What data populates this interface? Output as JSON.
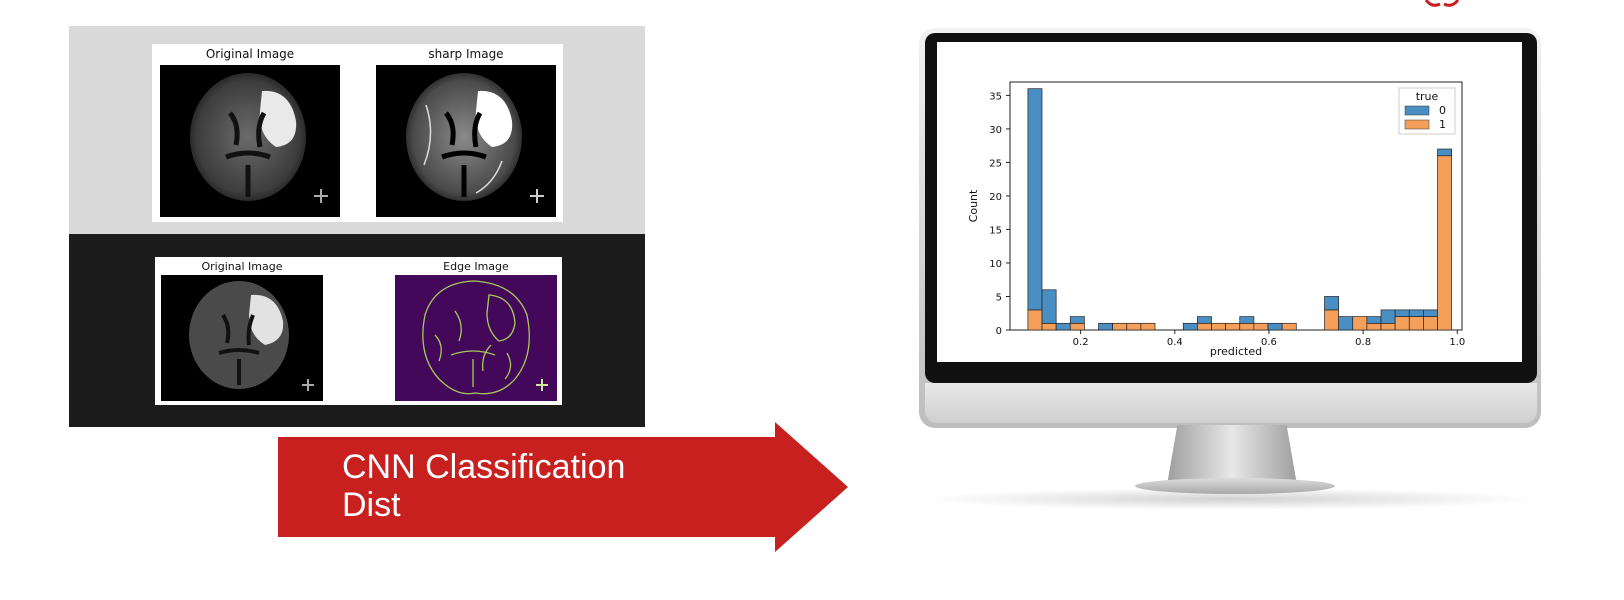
{
  "top_figure": {
    "left_title": "Original Image",
    "right_title": "sharp Image"
  },
  "bottom_figure": {
    "left_title": "Original Image",
    "right_title": "Edge Image"
  },
  "arrow": {
    "line1": "CNN Classification",
    "line2": "Dist",
    "color": "#c8201f"
  },
  "chart_data": {
    "type": "bar",
    "subtype": "stacked histogram",
    "xlabel": "predicted",
    "ylabel": "Count",
    "xlim": [
      0.05,
      1.01
    ],
    "ylim": [
      0,
      37
    ],
    "xticks": [
      0.2,
      0.4,
      0.6,
      0.8,
      1.0
    ],
    "xtick_labels": [
      "0.2",
      "0.4",
      "0.6",
      "0.8",
      "1.0"
    ],
    "yticks": [
      0,
      5,
      10,
      15,
      20,
      25,
      30,
      35
    ],
    "ytick_labels": [
      "0",
      "5",
      "10",
      "15",
      "20",
      "25",
      "30",
      "35"
    ],
    "legend": {
      "title": "true",
      "position": "top-right",
      "entries": [
        "0",
        "1"
      ]
    },
    "bin_edges": [
      0.088,
      0.118,
      0.148,
      0.178,
      0.208,
      0.238,
      0.268,
      0.298,
      0.328,
      0.358,
      0.388,
      0.418,
      0.448,
      0.478,
      0.508,
      0.538,
      0.568,
      0.598,
      0.628,
      0.658,
      0.688,
      0.718,
      0.748,
      0.778,
      0.808,
      0.838,
      0.868,
      0.898,
      0.928,
      0.958,
      0.988
    ],
    "series": [
      {
        "name": "0",
        "color": "#4a8fc4",
        "values": [
          33,
          5,
          1,
          1,
          0,
          1,
          0,
          0,
          0,
          0,
          0,
          1,
          1,
          0,
          0,
          1,
          0,
          1,
          0,
          0,
          0,
          2,
          2,
          0,
          1,
          2,
          1,
          1,
          1,
          1
        ]
      },
      {
        "name": "1",
        "color": "#f5a05a",
        "values": [
          3,
          1,
          0,
          1,
          0,
          0,
          1,
          1,
          1,
          0,
          0,
          0,
          1,
          1,
          1,
          1,
          1,
          0,
          1,
          0,
          0,
          3,
          0,
          2,
          1,
          1,
          2,
          2,
          2,
          26
        ]
      }
    ],
    "stacked_totals": [
      36,
      6,
      1,
      2,
      0,
      1,
      1,
      1,
      1,
      0,
      0,
      1,
      2,
      1,
      1,
      2,
      1,
      1,
      1,
      0,
      0,
      5,
      2,
      2,
      2,
      3,
      3,
      3,
      3,
      27
    ]
  }
}
